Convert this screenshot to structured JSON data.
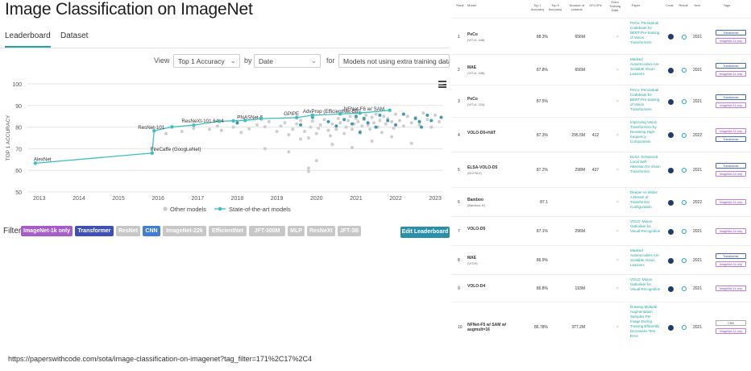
{
  "page": {
    "title": "Image Classification on ImageNet",
    "url": "https://paperswithcode.com/sota/image-classification-on-imagenet?tag_filter=171%2C17%2C4"
  },
  "tabs": [
    {
      "label": "Leaderboard",
      "active": true
    },
    {
      "label": "Dataset",
      "active": false
    }
  ],
  "controls": {
    "view_label": "View",
    "metric_value": "Top 1 Accuracy",
    "by_label": "by",
    "by_value": "Date",
    "for_label": "for",
    "for_value": "Models not using extra training data"
  },
  "filter": {
    "label": "Filter:",
    "chips": [
      {
        "label": "ImageNet-1k only",
        "color": "#a65dc9",
        "active": true
      },
      {
        "label": "Transformer",
        "color": "#3f51b5",
        "active": true
      },
      {
        "label": "ResNet",
        "color": "#c7c7c7",
        "active": false
      },
      {
        "label": "CNN",
        "color": "#3f7fd6",
        "active": true
      },
      {
        "label": "ImageNet-22k",
        "color": "#c7c7c7",
        "active": false
      },
      {
        "label": "EfficientNet",
        "color": "#c7c7c7",
        "active": false
      },
      {
        "label": "JFT-300M",
        "color": "#c7c7c7",
        "active": false
      },
      {
        "label": "MLP",
        "color": "#c7c7c7",
        "active": false
      },
      {
        "label": "ResNeXt",
        "color": "#c7c7c7",
        "active": false
      },
      {
        "label": "JFT-3B",
        "color": "#c7c7c7",
        "active": false
      }
    ],
    "edit_button": "Edit Leaderboard"
  },
  "chart_data": {
    "type": "scatter",
    "ylabel": "TOP 1 ACCURACY",
    "xlabel": "",
    "ylim": [
      50,
      100
    ],
    "xlim": [
      2012.7,
      2023.2
    ],
    "y_ticks": [
      50,
      60,
      70,
      80,
      90,
      100
    ],
    "x_ticks": [
      "2013",
      "2014",
      "2015",
      "2016",
      "2017",
      "2018",
      "2019",
      "2020",
      "2021",
      "2022",
      "2023"
    ],
    "grid": true,
    "legend_position": "bottom",
    "legend": [
      "Other models",
      "State-of-the-art models"
    ],
    "sota": {
      "name": "State-of-the-art models",
      "color": "#3fbfbf",
      "points": [
        {
          "x": 2012.9,
          "y": 63.3,
          "label": "AlexNet"
        },
        {
          "x": 2015.85,
          "y": 68.0,
          "label": "FireCaffe (GoogLeNet)"
        },
        {
          "x": 2015.9,
          "y": 78.3,
          "label": "ResNet-101"
        },
        {
          "x": 2016.35,
          "y": 80.1,
          "label": ""
        },
        {
          "x": 2016.9,
          "y": 80.9,
          "label": "ResNeXt-101 64x4"
        },
        {
          "x": 2017.55,
          "y": 82.7,
          "label": ""
        },
        {
          "x": 2017.9,
          "y": 82.9,
          "label": ""
        },
        {
          "x": 2018.2,
          "y": 83.1,
          "label": "PNASNet-5"
        },
        {
          "x": 2018.6,
          "y": 83.9,
          "label": ""
        },
        {
          "x": 2019.5,
          "y": 84.4,
          "label": "GPIPE"
        },
        {
          "x": 2019.9,
          "y": 85.5,
          "label": "AdvProp (EfficientNet-B8)"
        },
        {
          "x": 2020.6,
          "y": 86.1,
          "label": ""
        },
        {
          "x": 2021.1,
          "y": 86.5,
          "label": "NFNet-F6 w/ SAM"
        },
        {
          "x": 2021.85,
          "y": 87.8,
          "label": ""
        }
      ]
    },
    "others": {
      "name": "Other models",
      "color": "#c9c9c9",
      "highlight_color": "#2a8fa8",
      "points": [
        [
          2016.2,
          77.0,
          0
        ],
        [
          2016.6,
          78.0,
          0
        ],
        [
          2016.9,
          79.5,
          0
        ],
        [
          2017.3,
          79.0,
          0
        ],
        [
          2017.5,
          80.5,
          0
        ],
        [
          2017.6,
          78.5,
          0
        ],
        [
          2017.9,
          80.0,
          0
        ],
        [
          2018.0,
          81.8,
          0
        ],
        [
          2018.1,
          77.5,
          0
        ],
        [
          2018.3,
          79.2,
          0
        ],
        [
          2018.5,
          81.0,
          0
        ],
        [
          2018.7,
          80.2,
          0
        ],
        [
          2018.8,
          82.5,
          0
        ],
        [
          2019.0,
          78.0,
          0
        ],
        [
          2019.1,
          80.5,
          0
        ],
        [
          2019.2,
          82.0,
          0
        ],
        [
          2019.3,
          76.5,
          0
        ],
        [
          2019.4,
          79.0,
          0
        ],
        [
          2019.5,
          81.5,
          0
        ],
        [
          2019.6,
          83.0,
          0
        ],
        [
          2019.7,
          78.0,
          0
        ],
        [
          2019.8,
          75.0,
          0
        ],
        [
          2019.85,
          80.0,
          0
        ],
        [
          2019.9,
          82.8,
          0
        ],
        [
          2020.0,
          77.0,
          0
        ],
        [
          2020.05,
          79.5,
          0
        ],
        [
          2020.1,
          81.0,
          0
        ],
        [
          2020.2,
          83.5,
          0
        ],
        [
          2020.3,
          78.5,
          0
        ],
        [
          2020.35,
          76.0,
          0
        ],
        [
          2020.4,
          81.5,
          0
        ],
        [
          2020.5,
          79.0,
          0
        ],
        [
          2020.55,
          84.0,
          0
        ],
        [
          2020.6,
          82.0,
          0
        ],
        [
          2020.7,
          77.0,
          0
        ],
        [
          2020.75,
          80.0,
          0
        ],
        [
          2020.8,
          83.0,
          0
        ],
        [
          2020.85,
          85.0,
          0
        ],
        [
          2020.9,
          79.0,
          0
        ],
        [
          2020.95,
          81.5,
          0
        ],
        [
          2021.0,
          84.0,
          0
        ],
        [
          2021.05,
          82.5,
          0
        ],
        [
          2021.1,
          78.0,
          0
        ],
        [
          2021.15,
          80.5,
          0
        ],
        [
          2021.2,
          83.5,
          0
        ],
        [
          2021.25,
          85.5,
          0
        ],
        [
          2021.3,
          81.0,
          0
        ],
        [
          2021.35,
          79.0,
          0
        ],
        [
          2021.4,
          84.5,
          0
        ],
        [
          2021.45,
          82.0,
          0
        ],
        [
          2021.5,
          86.0,
          0
        ],
        [
          2021.55,
          80.0,
          0
        ],
        [
          2021.6,
          83.0,
          0
        ],
        [
          2021.65,
          77.5,
          0
        ],
        [
          2021.7,
          85.0,
          0
        ],
        [
          2021.75,
          81.5,
          0
        ],
        [
          2021.8,
          84.0,
          0
        ],
        [
          2021.9,
          82.5,
          0
        ],
        [
          2021.95,
          79.5,
          0
        ],
        [
          2022.0,
          86.0,
          0
        ],
        [
          2022.1,
          83.0,
          0
        ],
        [
          2022.2,
          80.5,
          0
        ],
        [
          2022.3,
          85.0,
          0
        ],
        [
          2022.4,
          82.0,
          0
        ],
        [
          2022.5,
          84.5,
          0
        ],
        [
          2022.6,
          81.0,
          0
        ],
        [
          2022.7,
          86.5,
          0
        ],
        [
          2022.8,
          83.5,
          0
        ],
        [
          2022.9,
          80.0,
          0
        ],
        [
          2023.0,
          85.5,
          0
        ],
        [
          2023.1,
          82.5,
          0
        ],
        [
          2019.8,
          61.0,
          0
        ],
        [
          2020.0,
          64.5,
          0
        ],
        [
          2019.3,
          68.5,
          0
        ],
        [
          2018.7,
          70.0,
          0
        ],
        [
          2020.4,
          72.0,
          0
        ],
        [
          2021.4,
          73.5,
          0
        ],
        [
          2019.6,
          74.5,
          0
        ],
        [
          2021.9,
          75.5,
          0
        ],
        [
          2020.9,
          70.5,
          0
        ],
        [
          2022.4,
          72.5,
          0
        ],
        [
          2019.8,
          59.5,
          0
        ],
        [
          2019.6,
          81.0,
          1
        ],
        [
          2019.9,
          84.5,
          1
        ],
        [
          2020.3,
          82.5,
          1
        ],
        [
          2020.5,
          80.5,
          1
        ],
        [
          2020.7,
          83.5,
          1
        ],
        [
          2020.9,
          81.5,
          1
        ],
        [
          2021.0,
          85.0,
          1
        ],
        [
          2021.2,
          84.0,
          1
        ],
        [
          2021.3,
          82.0,
          1
        ],
        [
          2021.5,
          80.0,
          1
        ],
        [
          2021.6,
          85.5,
          1
        ],
        [
          2021.8,
          83.0,
          1
        ],
        [
          2022.0,
          81.0,
          1
        ],
        [
          2022.2,
          86.0,
          1
        ],
        [
          2022.5,
          84.0,
          1
        ],
        [
          2022.6,
          82.5,
          1
        ],
        [
          2022.65,
          80.0,
          1
        ],
        [
          2022.8,
          85.5,
          1
        ],
        [
          2022.9,
          83.0,
          1
        ],
        [
          2023.15,
          84.5,
          1
        ],
        [
          2021.1,
          77.5,
          1
        ],
        [
          2018.0,
          82.0,
          1
        ]
      ]
    }
  },
  "table": {
    "headers": {
      "rank": "Rank",
      "model": "Model",
      "top1": "Top 1 Accuracy",
      "top5": "Top 5 Accuracy",
      "params": "Number of params",
      "gflops": "GFLOPs",
      "extra": "Extra Training Data",
      "paper": "Paper",
      "code": "Code",
      "result": "Result",
      "year": "Year",
      "tags": "Tags"
    },
    "rows": [
      {
        "rank": "1",
        "model": "PeCo",
        "sub": "(ViT-H, 448)",
        "top1": "88.3%",
        "params": "656M",
        "gflops": "",
        "extra": "×",
        "paper": "PeCo: Perceptual Codebook for BERT Pre-training of Vision Transformers",
        "year": "2021",
        "tags": [
          {
            "label": "Transformer",
            "kind": "tr"
          },
          {
            "label": "ImageNet-1k only",
            "kind": "in"
          }
        ]
      },
      {
        "rank": "2",
        "model": "MAE",
        "sub": "(ViT-H, 448)",
        "top1": "87.8%",
        "params": "656M",
        "gflops": "",
        "extra": "×",
        "paper": "Masked Autoencoders Are Scalable Vision Learners",
        "year": "2021",
        "tags": [
          {
            "label": "Transformer",
            "kind": "tr"
          },
          {
            "label": "ImageNet-1k only",
            "kind": "in"
          }
        ]
      },
      {
        "rank": "3",
        "model": "PeCo",
        "sub": "(ViT-H, 224)",
        "top1": "87.5%",
        "params": "",
        "gflops": "",
        "extra": "×",
        "paper": "PeCo: Perceptual Codebook for BERT Pre-training of Vision Transformers",
        "year": "2021",
        "tags": [
          {
            "label": "Transformer",
            "kind": "tr"
          },
          {
            "label": "ImageNet-1k only",
            "kind": "in"
          }
        ]
      },
      {
        "rank": "4",
        "model": "VOLO-D5+HAT",
        "sub": "",
        "top1": "87.3%",
        "params": "295.5M",
        "gflops": "412",
        "extra": "×",
        "paper": "Improving Vision Transformers by Revisiting High-frequency Components",
        "year": "2022",
        "tags": [
          {
            "label": "ImageNet-1k only",
            "kind": "in"
          },
          {
            "label": "Transformer",
            "kind": "tr"
          }
        ]
      },
      {
        "rank": "5",
        "model": "ELSA-VOLO-D5",
        "sub": "(512*512)",
        "top1": "87.2%",
        "params": "298M",
        "gflops": "437",
        "extra": "×",
        "paper": "ELSA: Enhanced Local Self-Attention for Vision Transformer",
        "year": "2021",
        "tags": [
          {
            "label": "Transformer",
            "kind": "tr"
          },
          {
            "label": "ImageNet-1k only",
            "kind": "in"
          }
        ]
      },
      {
        "rank": "6",
        "model": "Bamboo",
        "sub": "(Bamboo-H)",
        "top1": "87.1",
        "params": "",
        "gflops": "",
        "extra": "×",
        "paper": "Deeper vs Wider: A Revisit of Transformer Configuration",
        "year": "2022",
        "tags": [
          {
            "label": "ImageNet-1k only",
            "kind": "in"
          }
        ]
      },
      {
        "rank": "7",
        "model": "VOLO-D5",
        "sub": "",
        "top1": "87.1%",
        "params": "296M",
        "gflops": "",
        "extra": "×",
        "paper": "VOLO: Vision Outlooker for Visual Recognition",
        "year": "2021",
        "tags": [
          {
            "label": "ImageNet-1k only",
            "kind": "in"
          }
        ]
      },
      {
        "rank": "8",
        "model": "MAE",
        "sub": "(ViT-H)",
        "top1": "86.9%",
        "params": "",
        "gflops": "",
        "extra": "×",
        "paper": "Masked Autoencoders Are Scalable Vision Learners",
        "year": "2021",
        "tags": [
          {
            "label": "Transformer",
            "kind": "tr"
          },
          {
            "label": "ImageNet-1k only",
            "kind": "in"
          }
        ]
      },
      {
        "rank": "9",
        "model": "VOLO-D4",
        "sub": "",
        "top1": "86.8%",
        "params": "193M",
        "gflops": "",
        "extra": "×",
        "paper": "VOLO: Vision Outlooker for Visual Recognition",
        "year": "2021",
        "tags": [
          {
            "label": "ImageNet-1k only",
            "kind": "in"
          }
        ]
      },
      {
        "rank": "10",
        "model": "NFNet-F5 w/ SAM w/ augmult=16",
        "sub": "",
        "top1": "86.78%",
        "params": "377.2M",
        "gflops": "",
        "extra": "×",
        "paper": "Drawing Multiple Augmentation Samples Per Image During Training Efficiently Decreases Test Error",
        "year": "2021",
        "tags": [
          {
            "label": "CNN",
            "kind": "cnn"
          },
          {
            "label": "ImageNet-1k only",
            "kind": "in"
          }
        ]
      }
    ]
  }
}
